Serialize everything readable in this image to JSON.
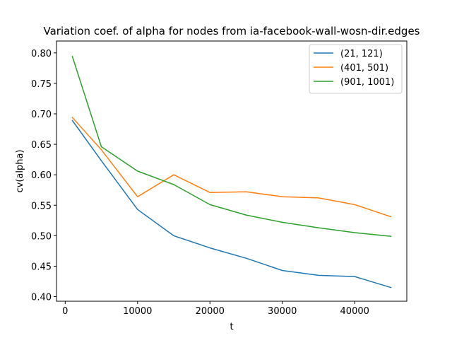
{
  "chart_data": {
    "type": "line",
    "title": "Variation coef. of alpha for nodes from ia-facebook-wall-wosn-dir.edges",
    "xlabel": "t",
    "ylabel": "cv(alpha)",
    "xlim": [
      -1200,
      47200
    ],
    "ylim": [
      0.3925,
      0.8195
    ],
    "x": [
      1000,
      5000,
      10000,
      15000,
      20000,
      25000,
      30000,
      35000,
      40000,
      45000
    ],
    "xticks": [
      0,
      10000,
      20000,
      30000,
      40000
    ],
    "xtick_labels": [
      "0",
      "10000",
      "20000",
      "30000",
      "40000"
    ],
    "yticks": [
      0.4,
      0.45,
      0.5,
      0.55,
      0.6,
      0.65,
      0.7,
      0.75,
      0.8
    ],
    "ytick_labels": [
      "0.40",
      "0.45",
      "0.50",
      "0.55",
      "0.60",
      "0.65",
      "0.70",
      "0.75",
      "0.80"
    ],
    "legend_position": "top-right",
    "series": [
      {
        "name": "(21, 121)",
        "color": "#1f77b4",
        "values": [
          0.689,
          0.623,
          0.543,
          0.5,
          0.48,
          0.463,
          0.443,
          0.435,
          0.433,
          0.415
        ]
      },
      {
        "name": "(401, 501)",
        "color": "#ff7f0e",
        "values": [
          0.694,
          0.641,
          0.564,
          0.6,
          0.571,
          0.572,
          0.564,
          0.562,
          0.551,
          0.531
        ]
      },
      {
        "name": "(901, 1001)",
        "color": "#2ca02c",
        "values": [
          0.794,
          0.646,
          0.606,
          0.584,
          0.551,
          0.534,
          0.522,
          0.513,
          0.505,
          0.499
        ]
      }
    ]
  }
}
